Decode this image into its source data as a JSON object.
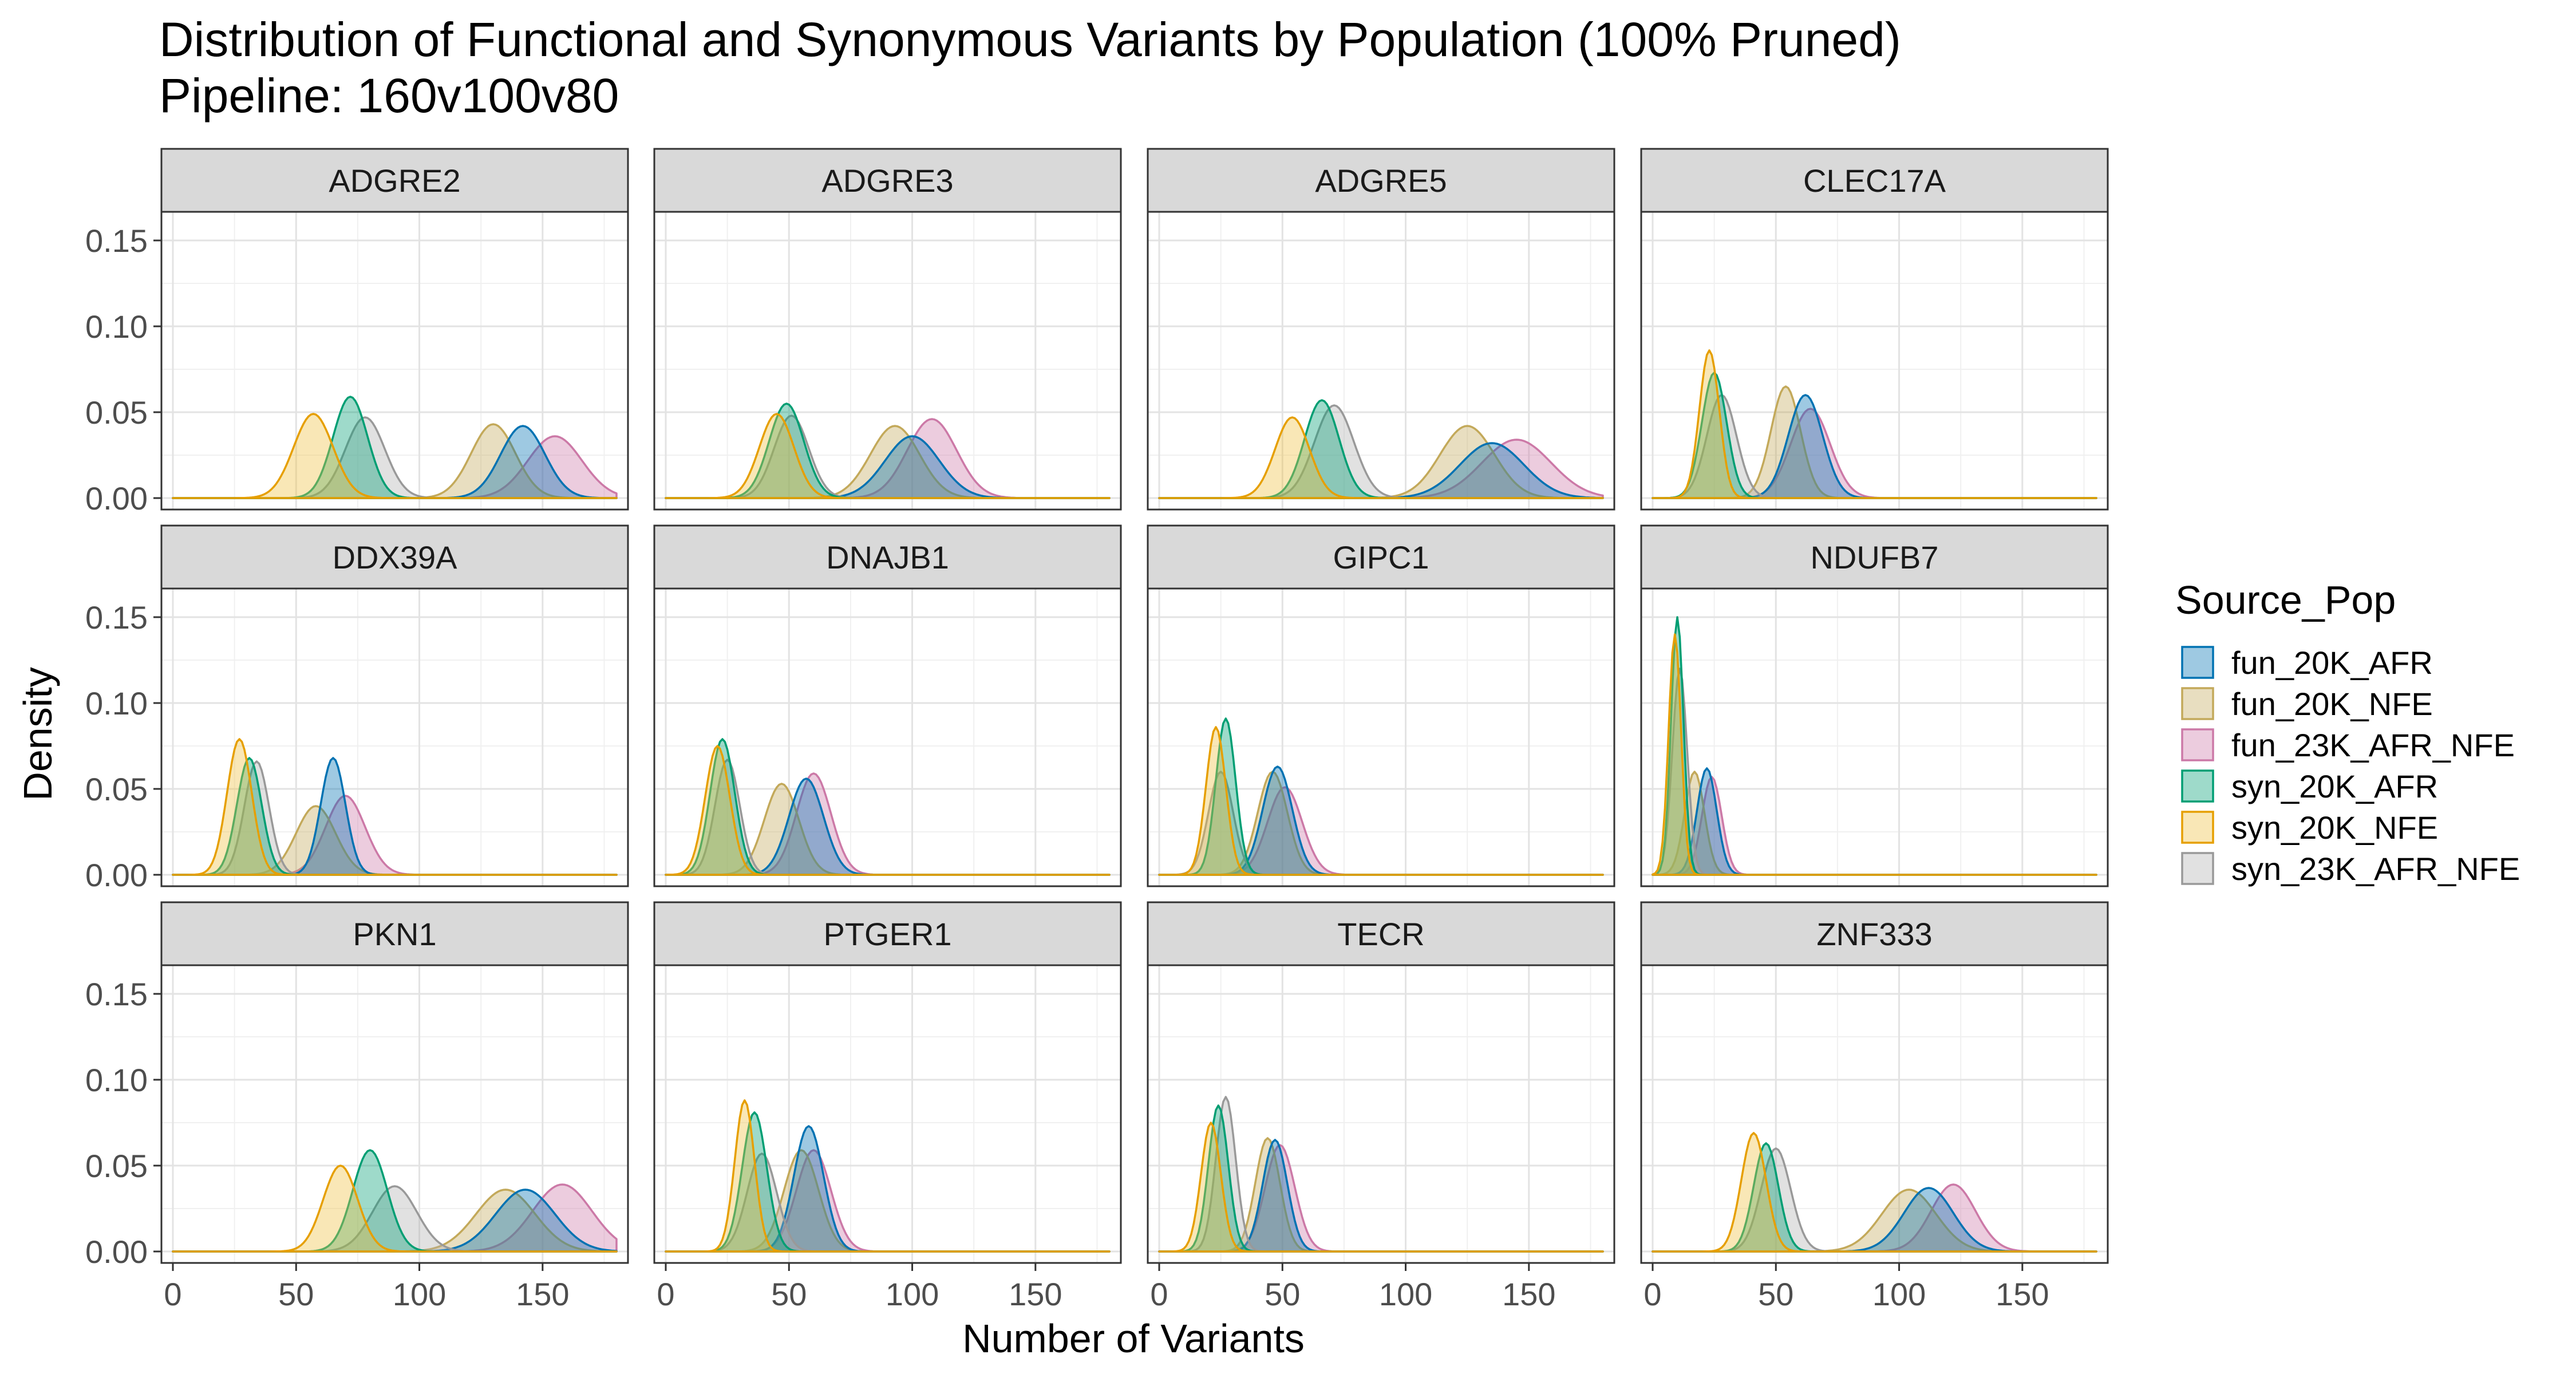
{
  "chart_data": {
    "type": "area",
    "title": "Distribution of Functional and Synonymous Variants by Population (100% Pruned)",
    "subtitle": "Pipeline: 160v100v80",
    "xlabel": "Number of Variants",
    "ylabel": "Density",
    "xlim": [
      0,
      180
    ],
    "ylim": [
      0,
      0.16
    ],
    "x_ticks": [
      "0",
      "50",
      "100",
      "150"
    ],
    "y_ticks": [
      "0.00",
      "0.05",
      "0.10",
      "0.15"
    ],
    "grid": true,
    "legend": {
      "title": "Source_Pop",
      "position": "right",
      "entries": [
        "fun_20K_AFR",
        "fun_20K_NFE",
        "fun_23K_AFR_NFE",
        "syn_20K_AFR",
        "syn_20K_NFE",
        "syn_23K_AFR_NFE"
      ]
    },
    "series_styles": [
      {
        "name": "fun_20K_AFR",
        "line": "#0072B2",
        "fill": "#0072B2"
      },
      {
        "name": "fun_20K_NFE",
        "line": "#C3A95A",
        "fill": "#C3A95A"
      },
      {
        "name": "fun_23K_AFR_NFE",
        "line": "#CC79A7",
        "fill": "#CC79A7"
      },
      {
        "name": "syn_20K_AFR",
        "line": "#009E73",
        "fill": "#009E73"
      },
      {
        "name": "syn_20K_NFE",
        "line": "#E69F00",
        "fill": "#F0C040"
      },
      {
        "name": "syn_23K_AFR_NFE",
        "line": "#999999",
        "fill": "#B0B0B0"
      }
    ],
    "facets": [
      {
        "gene": "ADGRE2",
        "peaks": [
          {
            "series": "fun_20K_AFR",
            "mean": 142,
            "peak_density": 0.042,
            "sd": 9
          },
          {
            "series": "fun_20K_NFE",
            "mean": 130,
            "peak_density": 0.043,
            "sd": 9
          },
          {
            "series": "fun_23K_AFR_NFE",
            "mean": 155,
            "peak_density": 0.036,
            "sd": 11
          },
          {
            "series": "syn_20K_AFR",
            "mean": 72,
            "peak_density": 0.059,
            "sd": 7
          },
          {
            "series": "syn_20K_NFE",
            "mean": 57,
            "peak_density": 0.049,
            "sd": 8
          },
          {
            "series": "syn_23K_AFR_NFE",
            "mean": 78,
            "peak_density": 0.047,
            "sd": 8
          }
        ]
      },
      {
        "gene": "ADGRE3",
        "peaks": [
          {
            "series": "fun_20K_AFR",
            "mean": 100,
            "peak_density": 0.036,
            "sd": 11
          },
          {
            "series": "fun_20K_NFE",
            "mean": 93,
            "peak_density": 0.042,
            "sd": 10
          },
          {
            "series": "fun_23K_AFR_NFE",
            "mean": 108,
            "peak_density": 0.046,
            "sd": 10
          },
          {
            "series": "syn_20K_AFR",
            "mean": 49,
            "peak_density": 0.055,
            "sd": 7
          },
          {
            "series": "syn_20K_NFE",
            "mean": 45,
            "peak_density": 0.049,
            "sd": 7
          },
          {
            "series": "syn_23K_AFR_NFE",
            "mean": 51,
            "peak_density": 0.048,
            "sd": 7
          }
        ]
      },
      {
        "gene": "ADGRE5",
        "peaks": [
          {
            "series": "fun_20K_AFR",
            "mean": 135,
            "peak_density": 0.032,
            "sd": 13
          },
          {
            "series": "fun_20K_NFE",
            "mean": 125,
            "peak_density": 0.042,
            "sd": 11
          },
          {
            "series": "fun_23K_AFR_NFE",
            "mean": 145,
            "peak_density": 0.034,
            "sd": 14
          },
          {
            "series": "syn_20K_AFR",
            "mean": 66,
            "peak_density": 0.057,
            "sd": 7
          },
          {
            "series": "syn_20K_NFE",
            "mean": 54,
            "peak_density": 0.047,
            "sd": 7
          },
          {
            "series": "syn_23K_AFR_NFE",
            "mean": 71,
            "peak_density": 0.054,
            "sd": 8
          }
        ]
      },
      {
        "gene": "CLEC17A",
        "peaks": [
          {
            "series": "fun_20K_AFR",
            "mean": 62,
            "peak_density": 0.06,
            "sd": 7
          },
          {
            "series": "fun_20K_NFE",
            "mean": 54,
            "peak_density": 0.065,
            "sd": 6
          },
          {
            "series": "fun_23K_AFR_NFE",
            "mean": 64,
            "peak_density": 0.052,
            "sd": 8
          },
          {
            "series": "syn_20K_AFR",
            "mean": 25,
            "peak_density": 0.073,
            "sd": 5
          },
          {
            "series": "syn_20K_NFE",
            "mean": 23,
            "peak_density": 0.086,
            "sd": 4
          },
          {
            "series": "syn_23K_AFR_NFE",
            "mean": 28,
            "peak_density": 0.06,
            "sd": 6
          }
        ]
      },
      {
        "gene": "DDX39A",
        "peaks": [
          {
            "series": "fun_20K_AFR",
            "mean": 65,
            "peak_density": 0.068,
            "sd": 5
          },
          {
            "series": "fun_20K_NFE",
            "mean": 58,
            "peak_density": 0.04,
            "sd": 8
          },
          {
            "series": "fun_23K_AFR_NFE",
            "mean": 70,
            "peak_density": 0.046,
            "sd": 8
          },
          {
            "series": "syn_20K_AFR",
            "mean": 31,
            "peak_density": 0.068,
            "sd": 5
          },
          {
            "series": "syn_20K_NFE",
            "mean": 27,
            "peak_density": 0.079,
            "sd": 5
          },
          {
            "series": "syn_23K_AFR_NFE",
            "mean": 34,
            "peak_density": 0.066,
            "sd": 5
          }
        ]
      },
      {
        "gene": "DNAJB1",
        "peaks": [
          {
            "series": "fun_20K_AFR",
            "mean": 57,
            "peak_density": 0.056,
            "sd": 7
          },
          {
            "series": "fun_20K_NFE",
            "mean": 47,
            "peak_density": 0.053,
            "sd": 7
          },
          {
            "series": "fun_23K_AFR_NFE",
            "mean": 60,
            "peak_density": 0.059,
            "sd": 7
          },
          {
            "series": "syn_20K_AFR",
            "mean": 23,
            "peak_density": 0.079,
            "sd": 5
          },
          {
            "series": "syn_20K_NFE",
            "mean": 21,
            "peak_density": 0.075,
            "sd": 5
          },
          {
            "series": "syn_23K_AFR_NFE",
            "mean": 25,
            "peak_density": 0.067,
            "sd": 5
          }
        ]
      },
      {
        "gene": "GIPC1",
        "peaks": [
          {
            "series": "fun_20K_AFR",
            "mean": 48,
            "peak_density": 0.063,
            "sd": 6
          },
          {
            "series": "fun_20K_NFE",
            "mean": 46,
            "peak_density": 0.06,
            "sd": 6
          },
          {
            "series": "fun_23K_AFR_NFE",
            "mean": 51,
            "peak_density": 0.051,
            "sd": 7
          },
          {
            "series": "syn_20K_AFR",
            "mean": 27,
            "peak_density": 0.091,
            "sd": 4
          },
          {
            "series": "syn_20K_NFE",
            "mean": 23,
            "peak_density": 0.086,
            "sd": 4
          },
          {
            "series": "syn_23K_AFR_NFE",
            "mean": 25,
            "peak_density": 0.06,
            "sd": 5
          }
        ]
      },
      {
        "gene": "NDUFB7",
        "peaks": [
          {
            "series": "fun_20K_AFR",
            "mean": 22,
            "peak_density": 0.062,
            "sd": 4
          },
          {
            "series": "fun_20K_NFE",
            "mean": 17,
            "peak_density": 0.06,
            "sd": 4
          },
          {
            "series": "fun_23K_AFR_NFE",
            "mean": 24,
            "peak_density": 0.057,
            "sd": 4
          },
          {
            "series": "syn_20K_AFR",
            "mean": 10,
            "peak_density": 0.15,
            "sd": 2.5
          },
          {
            "series": "syn_20K_NFE",
            "mean": 9,
            "peak_density": 0.14,
            "sd": 2.5
          },
          {
            "series": "syn_23K_AFR_NFE",
            "mean": 11,
            "peak_density": 0.12,
            "sd": 3
          }
        ]
      },
      {
        "gene": "PKN1",
        "peaks": [
          {
            "series": "fun_20K_AFR",
            "mean": 143,
            "peak_density": 0.036,
            "sd": 12
          },
          {
            "series": "fun_20K_NFE",
            "mean": 135,
            "peak_density": 0.036,
            "sd": 12
          },
          {
            "series": "fun_23K_AFR_NFE",
            "mean": 158,
            "peak_density": 0.039,
            "sd": 12
          },
          {
            "series": "syn_20K_AFR",
            "mean": 80,
            "peak_density": 0.059,
            "sd": 7
          },
          {
            "series": "syn_20K_NFE",
            "mean": 68,
            "peak_density": 0.05,
            "sd": 7
          },
          {
            "series": "syn_23K_AFR_NFE",
            "mean": 90,
            "peak_density": 0.038,
            "sd": 9
          }
        ]
      },
      {
        "gene": "PTGER1",
        "peaks": [
          {
            "series": "fun_20K_AFR",
            "mean": 58,
            "peak_density": 0.073,
            "sd": 6
          },
          {
            "series": "fun_20K_NFE",
            "mean": 55,
            "peak_density": 0.059,
            "sd": 7
          },
          {
            "series": "fun_23K_AFR_NFE",
            "mean": 60,
            "peak_density": 0.059,
            "sd": 7
          },
          {
            "series": "syn_20K_AFR",
            "mean": 36,
            "peak_density": 0.081,
            "sd": 5
          },
          {
            "series": "syn_20K_NFE",
            "mean": 32,
            "peak_density": 0.088,
            "sd": 4
          },
          {
            "series": "syn_23K_AFR_NFE",
            "mean": 39,
            "peak_density": 0.057,
            "sd": 6
          }
        ]
      },
      {
        "gene": "TECR",
        "peaks": [
          {
            "series": "fun_20K_AFR",
            "mean": 47,
            "peak_density": 0.065,
            "sd": 5
          },
          {
            "series": "fun_20K_NFE",
            "mean": 44,
            "peak_density": 0.066,
            "sd": 5
          },
          {
            "series": "fun_23K_AFR_NFE",
            "mean": 49,
            "peak_density": 0.062,
            "sd": 6
          },
          {
            "series": "syn_20K_AFR",
            "mean": 24,
            "peak_density": 0.085,
            "sd": 4
          },
          {
            "series": "syn_20K_NFE",
            "mean": 21,
            "peak_density": 0.075,
            "sd": 4
          },
          {
            "series": "syn_23K_AFR_NFE",
            "mean": 27,
            "peak_density": 0.09,
            "sd": 4
          }
        ]
      },
      {
        "gene": "ZNF333",
        "peaks": [
          {
            "series": "fun_20K_AFR",
            "mean": 112,
            "peak_density": 0.037,
            "sd": 10
          },
          {
            "series": "fun_20K_NFE",
            "mean": 104,
            "peak_density": 0.036,
            "sd": 11
          },
          {
            "series": "fun_23K_AFR_NFE",
            "mean": 122,
            "peak_density": 0.039,
            "sd": 9
          },
          {
            "series": "syn_20K_AFR",
            "mean": 46,
            "peak_density": 0.063,
            "sd": 5
          },
          {
            "series": "syn_20K_NFE",
            "mean": 41,
            "peak_density": 0.069,
            "sd": 5
          },
          {
            "series": "syn_23K_AFR_NFE",
            "mean": 50,
            "peak_density": 0.06,
            "sd": 6
          }
        ]
      }
    ]
  }
}
